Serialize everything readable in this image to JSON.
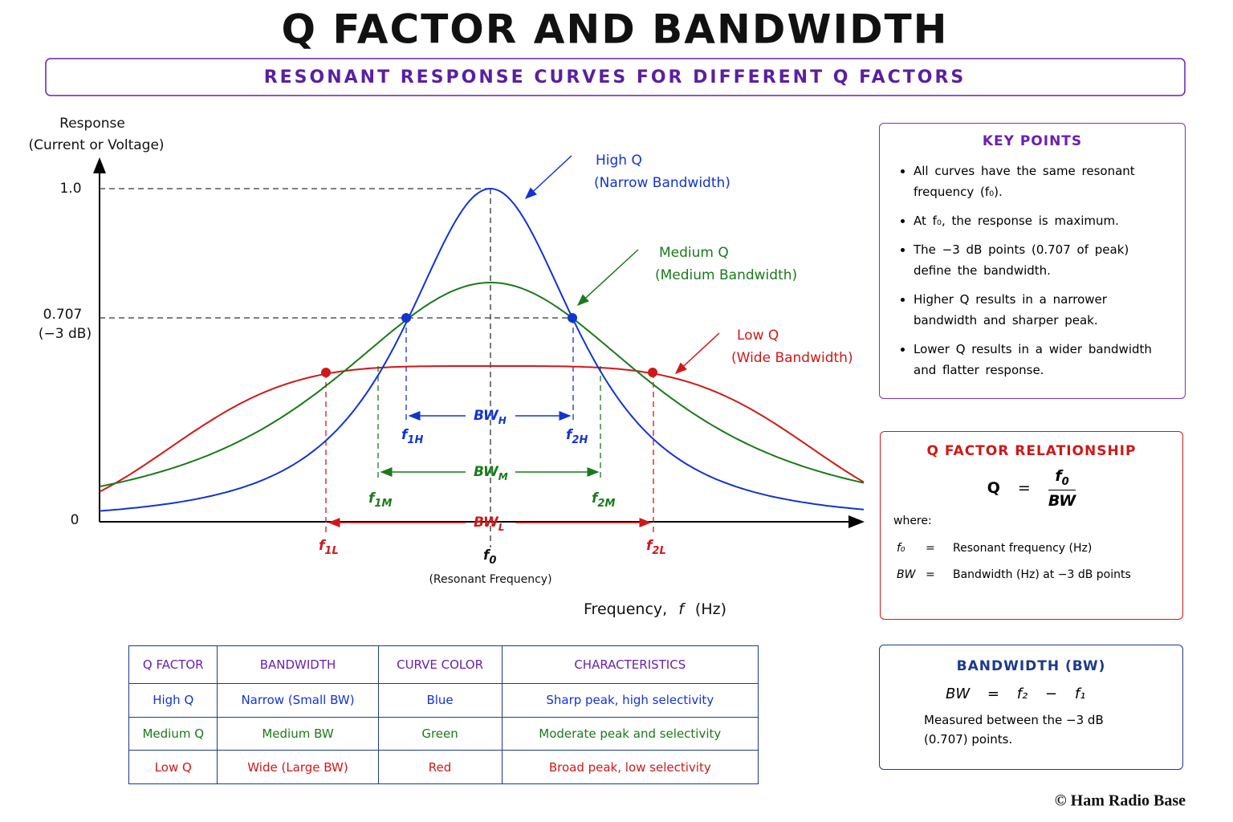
{
  "header": {
    "title": "Q FACTOR AND BANDWIDTH",
    "subtitle": "RESONANT RESPONSE CURVES FOR DIFFERENT Q FACTORS"
  },
  "graph": {
    "y_axis_label": [
      "Response",
      "(Current or Voltage)"
    ],
    "y_labels": {
      "peak": "1.0",
      "half_power": "0.707",
      "half_power_db": "(−3 dB)",
      "zero": "0"
    },
    "x_axis_label": {
      "text": "Frequency,",
      "symbol": "f",
      "unit": "(Hz)"
    },
    "center": {
      "symbol": "f",
      "sub": "0",
      "caption": "(Resonant Frequency)"
    },
    "curves": [
      {
        "name": "High Q",
        "note": "(Narrow Bandwidth)",
        "bw": {
          "symbol": "BW",
          "sub": "H"
        },
        "f1": {
          "symbol": "f",
          "sub": "1H"
        },
        "f2": {
          "symbol": "f",
          "sub": "2H"
        }
      },
      {
        "name": "Medium Q",
        "note": "(Medium Bandwidth)",
        "bw": {
          "symbol": "BW",
          "sub": "M"
        },
        "f1": {
          "symbol": "f",
          "sub": "1M"
        },
        "f2": {
          "symbol": "f",
          "sub": "2M"
        }
      },
      {
        "name": "Low Q",
        "note": "(Wide Bandwidth)",
        "bw": {
          "symbol": "BW",
          "sub": "L"
        },
        "f1": {
          "symbol": "f",
          "sub": "1L"
        },
        "f2": {
          "symbol": "f",
          "sub": "2L"
        }
      }
    ]
  },
  "key_points": {
    "title": "KEY POINTS",
    "items": [
      "All curves have the same resonant frequency (f₀).",
      "At f₀, the response is maximum.",
      "The −3 dB points (0.707 of peak) define the bandwidth.",
      "Higher Q results in a narrower bandwidth and sharper peak.",
      "Lower Q results in a wider bandwidth and flatter response."
    ]
  },
  "q_relationship": {
    "title": "Q FACTOR RELATIONSHIP",
    "lhs": "Q",
    "eq": "=",
    "numerator": {
      "symbol": "f",
      "sub": "0"
    },
    "denominator": "BW",
    "where": "where:",
    "definitions": [
      {
        "symbol": "f₀",
        "eq": "=",
        "text": "Resonant frequency (Hz)"
      },
      {
        "symbol": "BW",
        "eq": "=",
        "text": "Bandwidth (Hz) at −3 dB points"
      }
    ]
  },
  "bandwidth": {
    "title": "BANDWIDTH (BW)",
    "formula": [
      "BW",
      "=",
      "f₂",
      "−",
      "f₁"
    ],
    "description": "Measured between the −3 dB (0.707) points."
  },
  "table": {
    "header": [
      "Q FACTOR",
      "BANDWIDTH",
      "CURVE COLOR",
      "CHARACTERISTICS"
    ],
    "rows": [
      [
        "High Q",
        "Narrow (Small BW)",
        "Blue",
        "Sharp peak, high selectivity"
      ],
      [
        "Medium Q",
        "Medium BW",
        "Green",
        "Moderate peak and selectivity"
      ],
      [
        "Low Q",
        "Wide (Large BW)",
        "Red",
        "Broad peak, low selectivity"
      ]
    ]
  },
  "footer": "© Ham Radio Base"
}
